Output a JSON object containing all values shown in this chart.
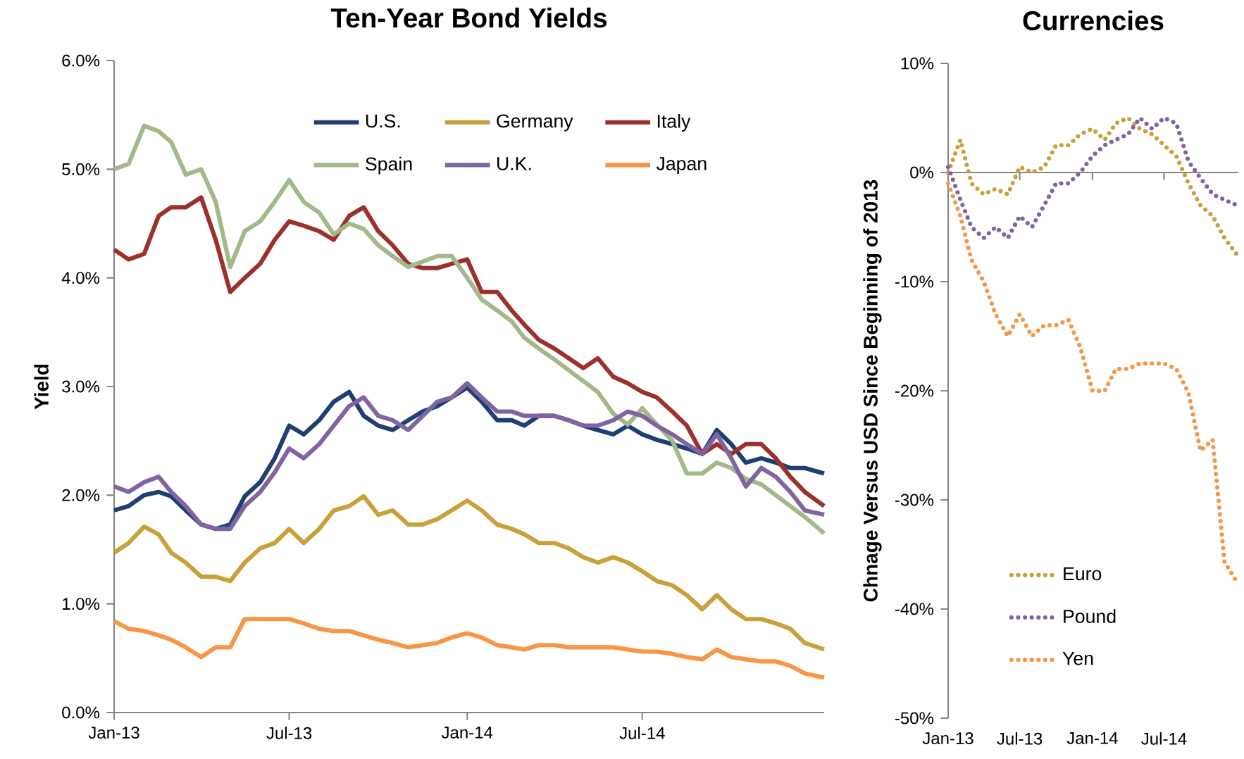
{
  "chart_data": [
    {
      "type": "line",
      "title": "Ten-Year Bond Yields",
      "ylabel": "Yield",
      "line_style": "solid",
      "legend": "top right",
      "x": [
        "2013-01-01",
        "2013-01-16",
        "2013-02-01",
        "2013-02-16",
        "2013-03-01",
        "2013-03-16",
        "2013-04-01",
        "2013-04-16",
        "2013-05-01",
        "2013-05-16",
        "2013-06-01",
        "2013-06-16",
        "2013-07-01",
        "2013-07-16",
        "2013-08-01",
        "2013-08-16",
        "2013-09-01",
        "2013-09-16",
        "2013-10-01",
        "2013-10-16",
        "2013-11-01",
        "2013-11-16",
        "2013-12-01",
        "2013-12-16",
        "2014-01-01",
        "2014-01-16",
        "2014-02-01",
        "2014-02-16",
        "2014-03-01",
        "2014-03-16",
        "2014-04-01",
        "2014-04-16",
        "2014-05-01",
        "2014-05-16",
        "2014-06-01",
        "2014-06-16",
        "2014-07-01",
        "2014-07-16",
        "2014-08-01",
        "2014-08-16",
        "2014-09-01",
        "2014-09-16",
        "2014-10-01",
        "2014-10-16",
        "2014-11-01",
        "2014-11-16",
        "2014-12-01",
        "2014-12-16",
        "2015-01-05"
      ],
      "series": [
        {
          "name": "U.S.",
          "color": "#1f3f73",
          "values": [
            1.86,
            1.9,
            2.0,
            2.03,
            1.99,
            1.86,
            1.73,
            1.69,
            1.73,
            1.99,
            2.12,
            2.34,
            2.64,
            2.56,
            2.69,
            2.86,
            2.95,
            2.73,
            2.64,
            2.6,
            2.69,
            2.77,
            2.82,
            2.9,
            2.99,
            2.86,
            2.69,
            2.69,
            2.64,
            2.73,
            2.73,
            2.69,
            2.64,
            2.6,
            2.56,
            2.64,
            2.56,
            2.51,
            2.47,
            2.43,
            2.38,
            2.6,
            2.47,
            2.3,
            2.34,
            2.3,
            2.25,
            2.25,
            2.2
          ]
        },
        {
          "name": "Germany",
          "color": "#c9a03a",
          "values": [
            1.47,
            1.56,
            1.71,
            1.64,
            1.47,
            1.38,
            1.25,
            1.25,
            1.21,
            1.38,
            1.51,
            1.56,
            1.69,
            1.56,
            1.69,
            1.86,
            1.9,
            1.99,
            1.82,
            1.86,
            1.73,
            1.73,
            1.78,
            1.86,
            1.95,
            1.86,
            1.73,
            1.69,
            1.64,
            1.56,
            1.56,
            1.51,
            1.43,
            1.38,
            1.43,
            1.38,
            1.3,
            1.21,
            1.17,
            1.08,
            0.95,
            1.08,
            0.95,
            0.86,
            0.86,
            0.82,
            0.77,
            0.64,
            0.58
          ]
        },
        {
          "name": "Italy",
          "color": "#9c302c",
          "values": [
            4.26,
            4.17,
            4.22,
            4.57,
            4.65,
            4.65,
            4.74,
            4.35,
            3.87,
            4.0,
            4.13,
            4.35,
            4.52,
            4.48,
            4.43,
            4.35,
            4.57,
            4.65,
            4.43,
            4.3,
            4.13,
            4.09,
            4.09,
            4.13,
            4.17,
            3.87,
            3.87,
            3.7,
            3.57,
            3.43,
            3.35,
            3.26,
            3.17,
            3.26,
            3.09,
            3.03,
            2.95,
            2.9,
            2.77,
            2.64,
            2.38,
            2.47,
            2.38,
            2.47,
            2.47,
            2.34,
            2.17,
            2.03,
            1.9
          ]
        },
        {
          "name": "Spain",
          "color": "#a4b98a",
          "values": [
            5.0,
            5.05,
            5.4,
            5.35,
            5.25,
            4.95,
            5.0,
            4.7,
            4.1,
            4.43,
            4.52,
            4.7,
            4.9,
            4.7,
            4.6,
            4.4,
            4.5,
            4.45,
            4.3,
            4.2,
            4.1,
            4.15,
            4.2,
            4.2,
            4.0,
            3.8,
            3.7,
            3.6,
            3.45,
            3.35,
            3.25,
            3.15,
            3.05,
            2.95,
            2.75,
            2.65,
            2.8,
            2.65,
            2.5,
            2.2,
            2.2,
            2.3,
            2.25,
            2.15,
            2.1,
            2.0,
            1.9,
            1.8,
            1.65
          ]
        },
        {
          "name": "U.K.",
          "color": "#8064a2",
          "values": [
            2.08,
            2.03,
            2.12,
            2.17,
            2.03,
            1.9,
            1.73,
            1.69,
            1.69,
            1.9,
            2.03,
            2.21,
            2.43,
            2.34,
            2.47,
            2.64,
            2.82,
            2.9,
            2.73,
            2.69,
            2.6,
            2.73,
            2.86,
            2.9,
            3.03,
            2.9,
            2.77,
            2.77,
            2.73,
            2.73,
            2.73,
            2.69,
            2.64,
            2.64,
            2.69,
            2.77,
            2.73,
            2.64,
            2.56,
            2.47,
            2.38,
            2.56,
            2.34,
            2.08,
            2.25,
            2.17,
            2.03,
            1.86,
            1.82
          ]
        },
        {
          "name": "Japan",
          "color": "#f79646",
          "values": [
            0.84,
            0.77,
            0.75,
            0.71,
            0.67,
            0.6,
            0.51,
            0.6,
            0.6,
            0.86,
            0.86,
            0.86,
            0.86,
            0.82,
            0.77,
            0.75,
            0.75,
            0.71,
            0.67,
            0.64,
            0.6,
            0.62,
            0.64,
            0.69,
            0.73,
            0.69,
            0.62,
            0.6,
            0.58,
            0.62,
            0.62,
            0.6,
            0.6,
            0.6,
            0.6,
            0.58,
            0.56,
            0.56,
            0.54,
            0.51,
            0.49,
            0.58,
            0.51,
            0.49,
            0.47,
            0.47,
            0.43,
            0.36,
            0.32
          ]
        }
      ],
      "xlim": [
        "2013-01-01",
        "2015-01-05"
      ],
      "xticks": [
        {
          "value": "2013-01-01",
          "label": "Jan-13"
        },
        {
          "value": "2013-07-01",
          "label": "Jul-13"
        },
        {
          "value": "2014-01-01",
          "label": "Jan-14"
        },
        {
          "value": "2014-07-01",
          "label": "Jul-14"
        }
      ],
      "ylim": [
        0,
        6
      ],
      "yticks": [
        {
          "value": 0,
          "label": "0.0%"
        },
        {
          "value": 1,
          "label": "1.0%"
        },
        {
          "value": 2,
          "label": "2.0%"
        },
        {
          "value": 3,
          "label": "3.0%"
        },
        {
          "value": 4,
          "label": "4.0%"
        },
        {
          "value": 5,
          "label": "5.0%"
        },
        {
          "value": 6,
          "label": "6.0%"
        }
      ]
    },
    {
      "type": "line",
      "title": "Currencies",
      "ylabel": "Chnage Versus USD Since Beginning of 2013",
      "line_style": "dotted",
      "legend": "bottom left",
      "x": [
        "2013-01-01",
        "2013-02-01",
        "2013-03-01",
        "2013-04-01",
        "2013-05-01",
        "2013-06-01",
        "2013-07-01",
        "2013-08-01",
        "2013-09-01",
        "2013-10-01",
        "2013-11-01",
        "2013-12-01",
        "2014-01-01",
        "2014-02-01",
        "2014-03-01",
        "2014-04-01",
        "2014-05-01",
        "2014-06-01",
        "2014-07-01",
        "2014-08-01",
        "2014-09-01",
        "2014-10-01",
        "2014-11-01",
        "2014-12-01",
        "2015-01-01"
      ],
      "series": [
        {
          "name": "Euro",
          "color": "#c9a03a",
          "values": [
            0,
            3,
            -1,
            -2,
            -1.5,
            -2,
            0.5,
            0,
            0.5,
            2.5,
            2.5,
            3.5,
            4,
            3,
            4.5,
            5,
            4,
            3.5,
            2.5,
            1.5,
            -1,
            -3,
            -4,
            -6,
            -7.5
          ]
        },
        {
          "name": "Pound",
          "color": "#8064a2",
          "values": [
            0.5,
            -2.5,
            -5,
            -6,
            -5,
            -6,
            -4,
            -5,
            -3,
            -1,
            -1,
            0,
            1.5,
            2.5,
            3,
            3.5,
            5,
            4,
            5,
            4.5,
            1,
            -0.5,
            -2,
            -2.5,
            -3
          ]
        },
        {
          "name": "Yen",
          "color": "#f79646",
          "values": [
            -1,
            -4,
            -8,
            -10,
            -13,
            -15,
            -13,
            -15,
            -14,
            -14,
            -13.5,
            -16,
            -20,
            -20,
            -18,
            -18,
            -17.5,
            -17.5,
            -17.5,
            -18,
            -20.2,
            -25.5,
            -24.5,
            -35.7,
            -37.5
          ]
        }
      ],
      "xlim": [
        "2013-01-01",
        "2015-01-05"
      ],
      "xticks": [
        {
          "value": "2013-01-01",
          "label": "Jan-13"
        },
        {
          "value": "2013-07-01",
          "label": "Jul-13"
        },
        {
          "value": "2014-01-01",
          "label": "Jan-14"
        },
        {
          "value": "2014-07-01",
          "label": "Jul-14"
        }
      ],
      "ylim": [
        -50,
        10
      ],
      "yticks": [
        {
          "value": -50,
          "label": "-50%"
        },
        {
          "value": -40,
          "label": "-40%"
        },
        {
          "value": -30,
          "label": "-30%"
        },
        {
          "value": -20,
          "label": "-20%"
        },
        {
          "value": -10,
          "label": "-10%"
        },
        {
          "value": 0,
          "label": "0%"
        },
        {
          "value": 10,
          "label": "10%"
        }
      ]
    }
  ]
}
